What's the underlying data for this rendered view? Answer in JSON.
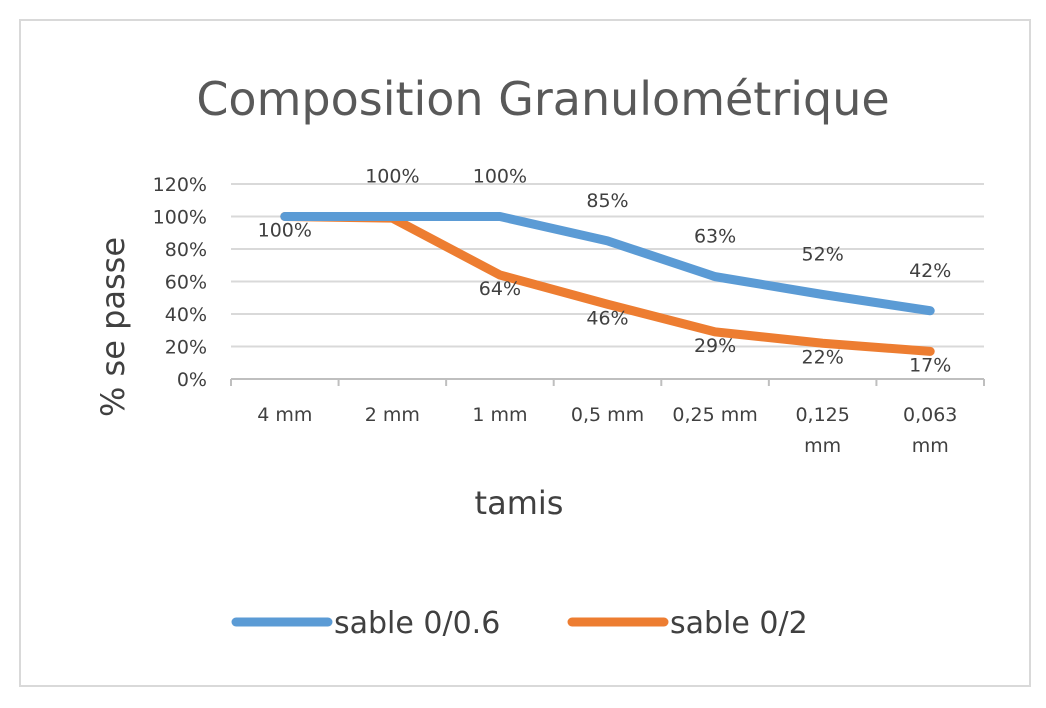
{
  "chart_data": {
    "type": "line",
    "title": "Composition Granulométrique",
    "xlabel": "tamis",
    "ylabel": "% se passe",
    "categories": [
      "4 mm",
      "2 mm",
      "1 mm",
      "0,5 mm",
      "0,25 mm",
      "0,125 mm",
      "0,063 mm"
    ],
    "ylim": [
      0,
      120
    ],
    "yticks": [
      "0%",
      "20%",
      "40%",
      "60%",
      "80%",
      "100%",
      "120%"
    ],
    "grid": true,
    "legend_position": "bottom",
    "series": [
      {
        "name": "sable 0/0.6",
        "color": "#5b9bd5",
        "values": [
          100,
          100,
          100,
          85,
          63,
          52,
          42
        ],
        "labels": [
          "",
          "100%",
          "100%",
          "85%",
          "63%",
          "52%",
          "42%"
        ]
      },
      {
        "name": "sable 0/2",
        "color": "#ed7d31",
        "values": [
          100,
          99,
          64,
          46,
          29,
          22,
          17
        ],
        "labels": [
          "100%",
          "",
          "64%",
          "46%",
          "29%",
          "22%",
          "17%"
        ]
      }
    ]
  }
}
